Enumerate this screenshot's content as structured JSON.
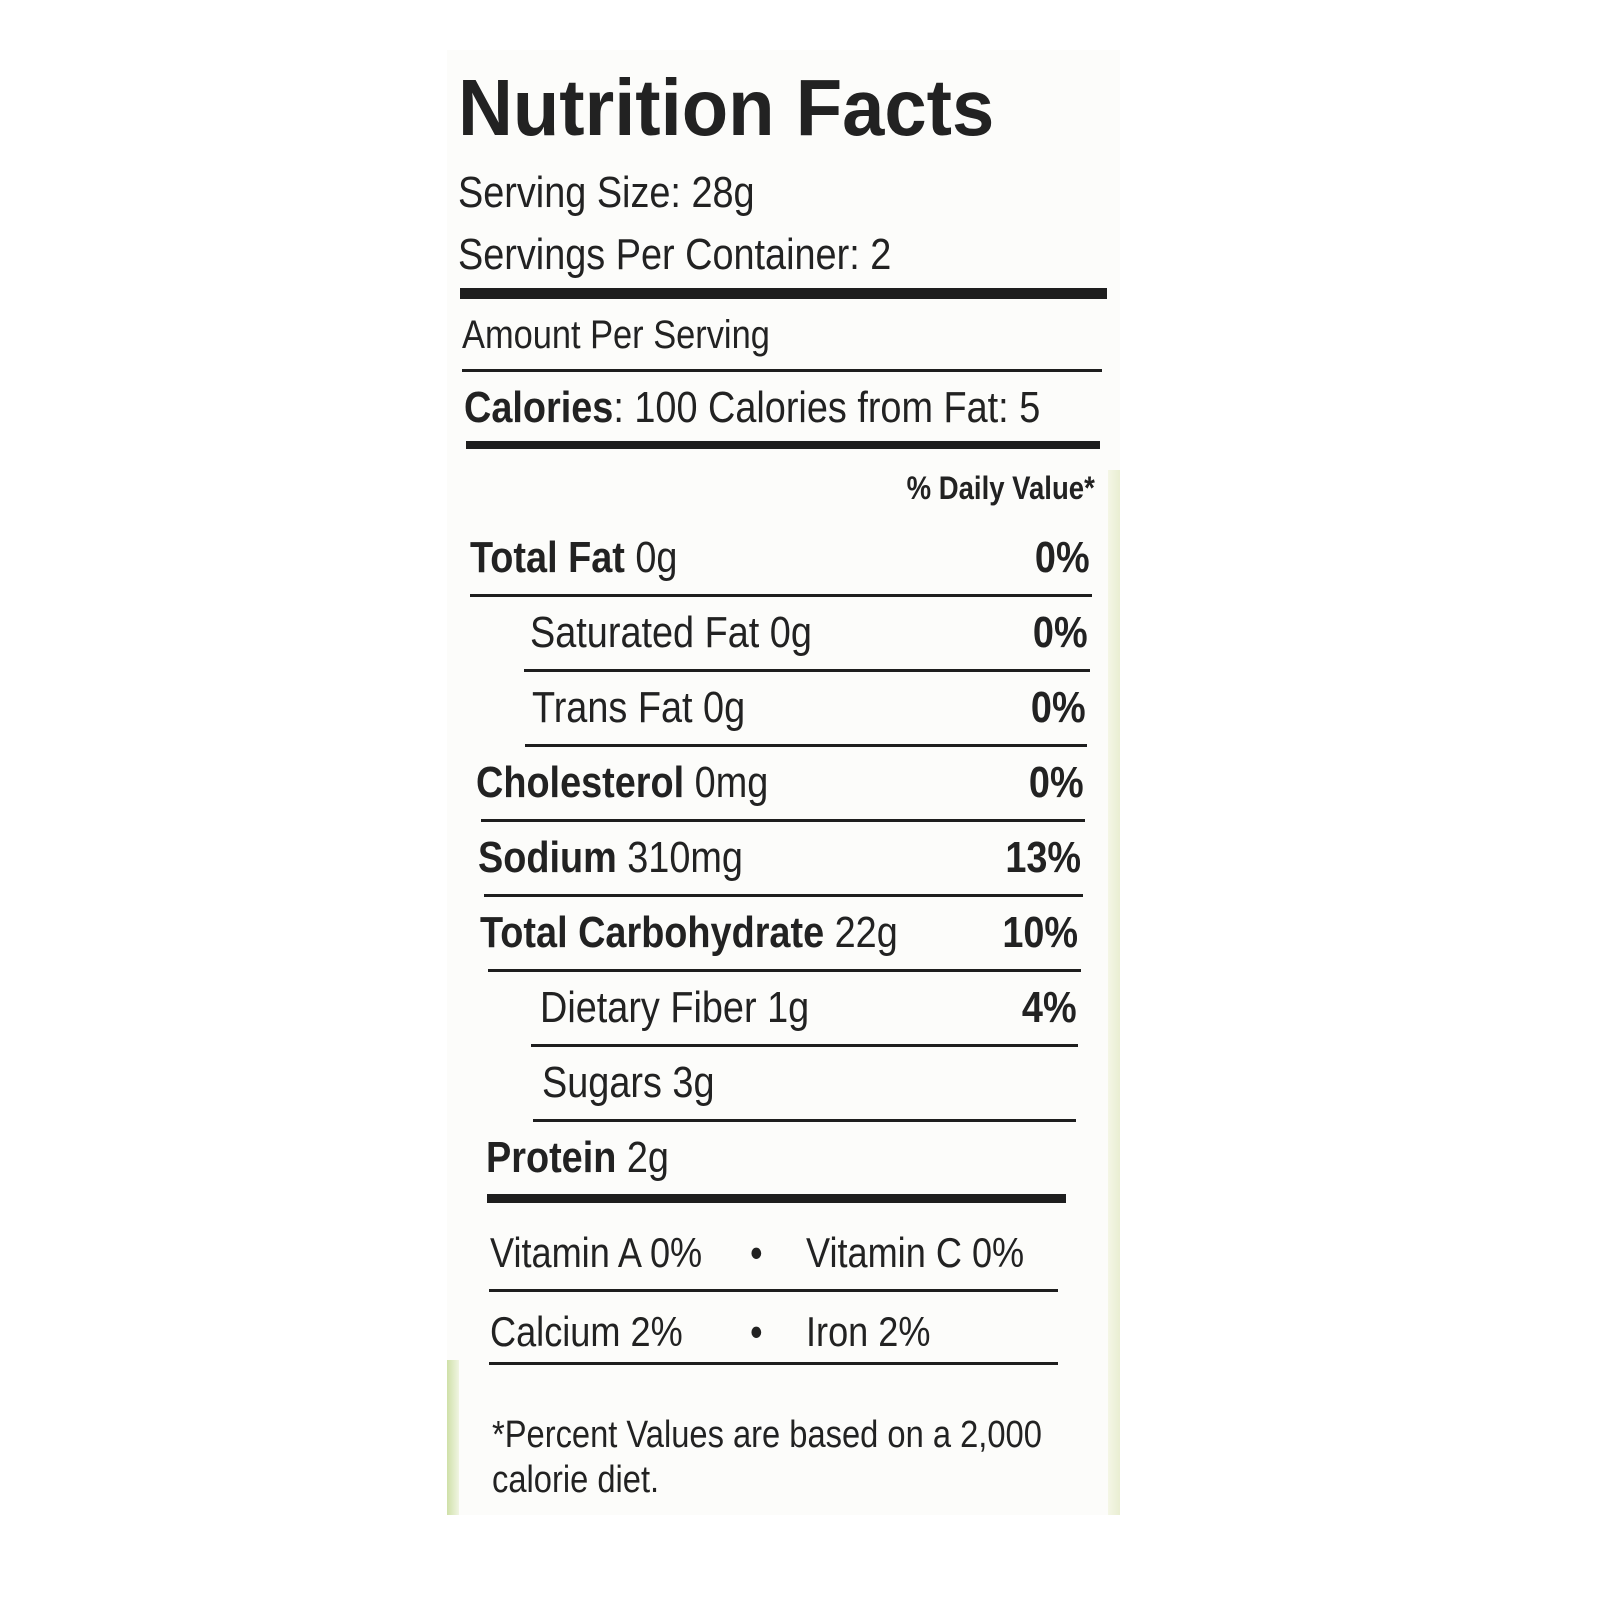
{
  "title": "Nutrition Facts",
  "serving": [
    "Serving Size: 28g",
    "Servings Per Container: 2"
  ],
  "amount_per_serving": "Amount Per Serving",
  "calories": {
    "label": "Calories",
    "text": ": 100 Calories from Fat: 5"
  },
  "daily_value_header": "% Daily Value*",
  "rows": [
    {
      "name": "Total Fat",
      "amount": "0g",
      "dv": "0%",
      "bold": true,
      "indent": false
    },
    {
      "name": "Saturated Fat",
      "amount": "0g",
      "dv": "0%",
      "bold": false,
      "indent": true
    },
    {
      "name": "Trans Fat",
      "amount": "0g",
      "dv": "0%",
      "bold": false,
      "indent": true
    },
    {
      "name": "Cholesterol",
      "amount": "0mg",
      "dv": "0%",
      "bold": true,
      "indent": false
    },
    {
      "name": "Sodium",
      "amount": "310mg",
      "dv": "13%",
      "bold": true,
      "indent": false
    },
    {
      "name": "Total Carbohydrate",
      "amount": "22g",
      "dv": "10%",
      "bold": true,
      "indent": false
    },
    {
      "name": "Dietary Fiber",
      "amount": "1g",
      "dv": "4%",
      "bold": false,
      "indent": true
    },
    {
      "name": "Sugars",
      "amount": "3g",
      "dv": null,
      "bold": false,
      "indent": true
    },
    {
      "name": "Protein",
      "amount": "2g",
      "dv": null,
      "bold": true,
      "indent": false
    }
  ],
  "vitamins": [
    [
      "Vitamin A 0%",
      "•",
      "Vitamin C 0%"
    ],
    [
      "Calcium 2%",
      "•",
      "Iron 2%"
    ]
  ],
  "footnote": [
    "*Percent Values are based on a 2,000",
    "calorie diet."
  ]
}
